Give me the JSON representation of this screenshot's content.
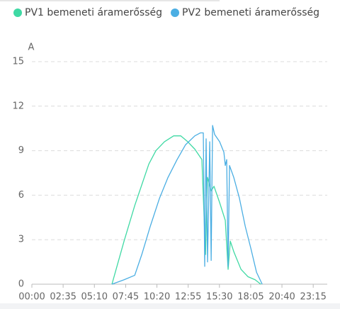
{
  "chart_data": {
    "type": "line",
    "y_label": "A",
    "xlim": [
      0,
      1440
    ],
    "xticks": [
      {
        "value": 0,
        "label": "00:00"
      },
      {
        "value": 155,
        "label": "02:35"
      },
      {
        "value": 310,
        "label": "05:10"
      },
      {
        "value": 465,
        "label": "07:45"
      },
      {
        "value": 620,
        "label": "10:20"
      },
      {
        "value": 775,
        "label": "12:55"
      },
      {
        "value": 930,
        "label": "15:30"
      },
      {
        "value": 1085,
        "label": "18:05"
      },
      {
        "value": 1240,
        "label": "20:40"
      },
      {
        "value": 1395,
        "label": "23:15"
      }
    ],
    "ylim": [
      0,
      15
    ],
    "yticks": [
      0,
      3,
      6,
      9,
      12,
      15
    ],
    "grid": true,
    "legend": "top-left",
    "series": [
      {
        "name": "PV1 bemeneti áramerősség",
        "color": "#3fd9a4",
        "x": [
          397,
          457,
          510,
          545,
          580,
          615,
          657,
          703,
          738,
          773,
          808,
          843,
          861,
          871,
          889,
          903,
          931,
          959,
          973,
          984,
          1001,
          1037,
          1072,
          1107,
          1135
        ],
        "values": [
          0,
          2.9,
          5.3,
          6.7,
          8.1,
          9.0,
          9.6,
          10.0,
          10.0,
          9.6,
          9.1,
          8.4,
          2.0,
          7.2,
          6.3,
          6.6,
          5.5,
          4.3,
          1.0,
          2.9,
          2.2,
          1.0,
          0.5,
          0.3,
          0
        ]
      },
      {
        "name": "PV2 bemeneti áramerősség",
        "color": "#4baee3",
        "x": [
          397,
          457,
          510,
          545,
          587,
          633,
          675,
          720,
          762,
          808,
          836,
          850,
          857,
          864,
          871,
          882,
          889,
          896,
          906,
          931,
          952,
          959,
          966,
          973,
          980,
          1001,
          1029,
          1058,
          1086,
          1114,
          1142
        ],
        "values": [
          0,
          0.3,
          0.6,
          2.0,
          3.9,
          5.8,
          7.2,
          8.4,
          9.4,
          10.0,
          10.2,
          10.2,
          1.2,
          9.8,
          1.5,
          9.6,
          1.6,
          10.7,
          10.1,
          9.6,
          8.9,
          8.0,
          8.4,
          1.2,
          8.0,
          7.2,
          5.8,
          3.9,
          2.4,
          0.8,
          0
        ]
      }
    ]
  }
}
